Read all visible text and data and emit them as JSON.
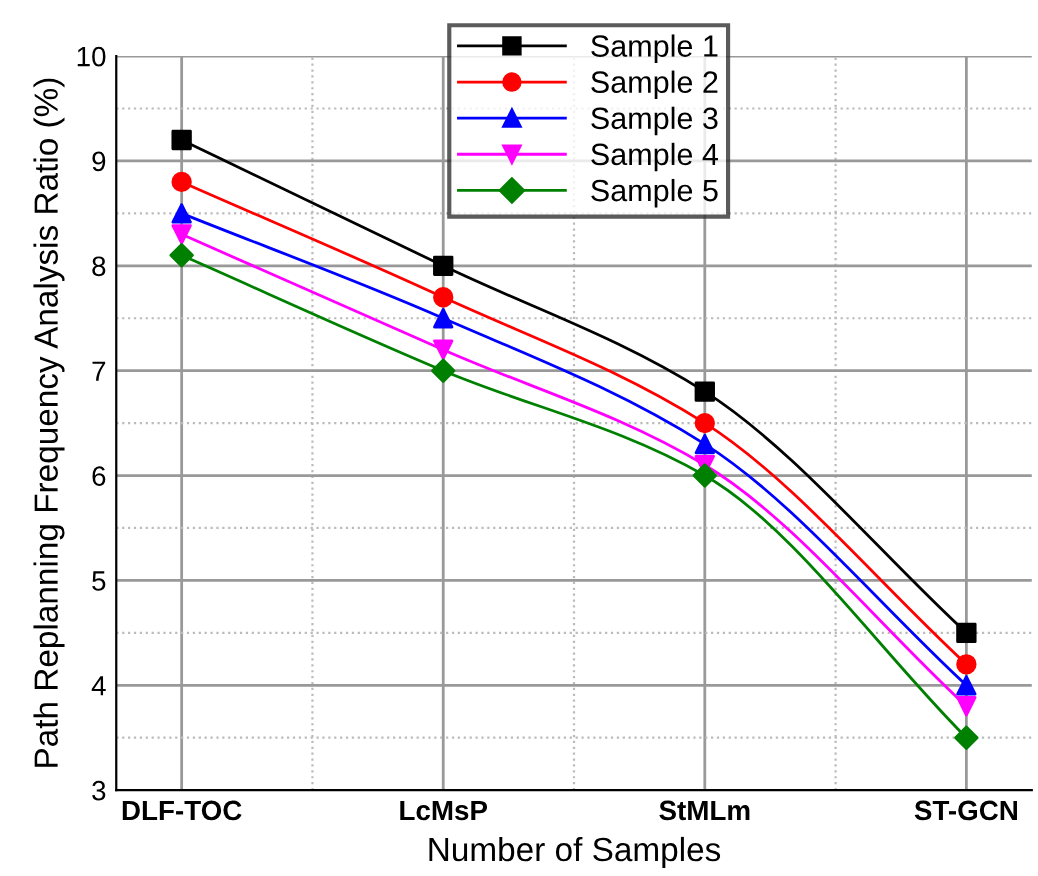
{
  "chart_data": {
    "type": "line",
    "xlabel": "Number of Samples",
    "ylabel": "Path Replanning Frequency Analysis Ratio (%)",
    "categories": [
      "DLF-TOC",
      "LcMsP",
      "StMLm",
      "ST-GCN"
    ],
    "series": [
      {
        "name": "Sample 1",
        "color": "#000000",
        "marker": "square",
        "values": [
          9.2,
          8.0,
          6.8,
          4.5
        ]
      },
      {
        "name": "Sample 2",
        "color": "#ff0000",
        "marker": "circle",
        "values": [
          8.8,
          7.7,
          6.5,
          4.2
        ]
      },
      {
        "name": "Sample 3",
        "color": "#0000ff",
        "marker": "triangle",
        "values": [
          8.5,
          7.5,
          6.3,
          4.0
        ]
      },
      {
        "name": "Sample 4",
        "color": "#ff00ff",
        "marker": "triangle_down",
        "values": [
          8.3,
          7.2,
          6.1,
          3.8
        ]
      },
      {
        "name": "Sample 5",
        "color": "#008000",
        "marker": "diamond",
        "values": [
          8.1,
          7.0,
          6.0,
          3.5
        ]
      }
    ],
    "ylim": [
      3,
      10
    ],
    "yticks": [
      3,
      4,
      5,
      6,
      7,
      8,
      9,
      10
    ],
    "grid": true,
    "legend": "top",
    "line_style": "solid"
  }
}
